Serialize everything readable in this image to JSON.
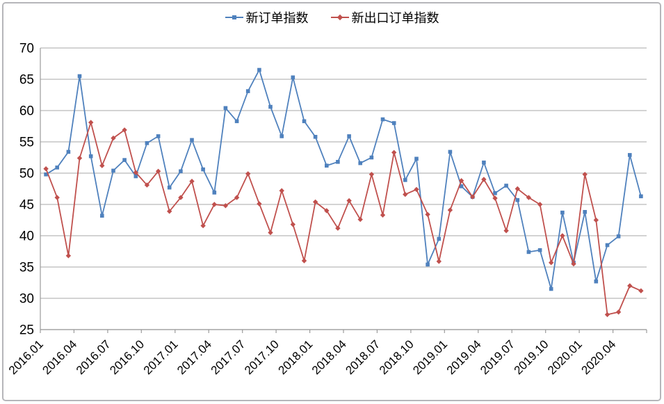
{
  "chart_data": {
    "type": "line",
    "title": "",
    "grid": "horizontal",
    "legend_position": "top-center",
    "ylim": [
      25,
      70
    ],
    "y_ticks": [
      70,
      65,
      60,
      55,
      50,
      45,
      40,
      35,
      30,
      25
    ],
    "x": [
      "2016.01",
      "2016.02",
      "2016.03",
      "2016.04",
      "2016.05",
      "2016.06",
      "2016.07",
      "2016.08",
      "2016.09",
      "2016.10",
      "2016.11",
      "2016.12",
      "2017.01",
      "2017.02",
      "2017.03",
      "2017.04",
      "2017.05",
      "2017.06",
      "2017.07",
      "2017.08",
      "2017.09",
      "2017.10",
      "2017.11",
      "2017.12",
      "2018.01",
      "2018.02",
      "2018.03",
      "2018.04",
      "2018.05",
      "2018.06",
      "2018.07",
      "2018.08",
      "2018.09",
      "2018.10",
      "2018.11",
      "2018.12",
      "2019.01",
      "2019.02",
      "2019.03",
      "2019.04",
      "2019.05",
      "2019.06",
      "2019.07",
      "2019.08",
      "2019.09",
      "2019.10",
      "2019.11",
      "2019.12",
      "2020.01",
      "2020.02",
      "2020.03",
      "2020.04",
      "2020.05",
      "2020.06"
    ],
    "x_tick_labels": [
      "2016.01",
      "2016.04",
      "2016.07",
      "2016.10",
      "2017.01",
      "2017.04",
      "2017.07",
      "2017.10",
      "2018.01",
      "2018.04",
      "2018.07",
      "2018.10",
      "2019.01",
      "2019.04",
      "2019.07",
      "2019.10",
      "2020.01",
      "2020.04"
    ],
    "series": [
      {
        "name": "新订单指数",
        "color": "#4F81BD",
        "marker": "square",
        "values": [
          49.8,
          50.9,
          53.4,
          65.5,
          52.7,
          43.2,
          50.4,
          52.1,
          49.5,
          54.8,
          55.9,
          47.7,
          50.3,
          55.3,
          50.6,
          46.9,
          60.4,
          58.3,
          63.1,
          66.5,
          60.6,
          55.9,
          65.3,
          58.3,
          55.8,
          51.2,
          51.8,
          55.9,
          51.6,
          52.5,
          58.6,
          58.0,
          48.9,
          52.3,
          35.4,
          39.5,
          53.4,
          47.9,
          46.2,
          51.7,
          46.8,
          48.0,
          45.7,
          37.4,
          37.7,
          31.5,
          43.7,
          35.7,
          43.8,
          32.7,
          38.5,
          39.9,
          52.9,
          46.3
        ]
      },
      {
        "name": "新出口订单指数",
        "color": "#C0504D",
        "marker": "diamond",
        "values": [
          50.7,
          46.1,
          36.8,
          52.4,
          58.1,
          51.2,
          55.6,
          56.9,
          50.1,
          48.1,
          50.3,
          43.9,
          46.1,
          48.7,
          41.6,
          45.0,
          44.8,
          46.1,
          49.9,
          45.1,
          40.5,
          47.2,
          41.8,
          36.0,
          45.4,
          44.0,
          41.2,
          45.6,
          42.6,
          49.8,
          43.3,
          53.3,
          46.6,
          47.4,
          43.4,
          35.9,
          44.1,
          48.8,
          46.2,
          49.0,
          46.0,
          40.8,
          47.5,
          46.1,
          45.0,
          35.7,
          40.0,
          35.5,
          49.8,
          42.5,
          27.4,
          27.8,
          32.0,
          31.2
        ]
      }
    ]
  }
}
